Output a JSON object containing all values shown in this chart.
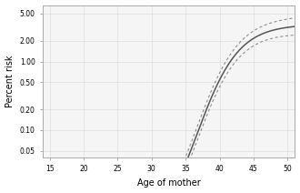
{
  "title": "",
  "xlabel": "Age of mother",
  "ylabel": "Percent risk",
  "x_min": 14,
  "x_max": 51,
  "yticks": [
    0.05,
    0.1,
    0.2,
    0.5,
    1.0,
    2.0,
    5.0
  ],
  "ytick_labels": [
    "0.05",
    "0.10",
    "0.20",
    "0.50",
    "1.00",
    "2.00",
    "5.00"
  ],
  "xticks": [
    15,
    20,
    25,
    30,
    35,
    40,
    45,
    50
  ],
  "background_color": "#f5f5f5",
  "line_color": "#555555",
  "ci_color": "#888888",
  "logistic_midpoint": 36.5,
  "logistic_steepness": 0.32,
  "logistic_lower_log": -2.75,
  "logistic_upper_log": 0.54,
  "ci_log_spread_low": 0.14,
  "ci_log_spread_high": 0.2
}
